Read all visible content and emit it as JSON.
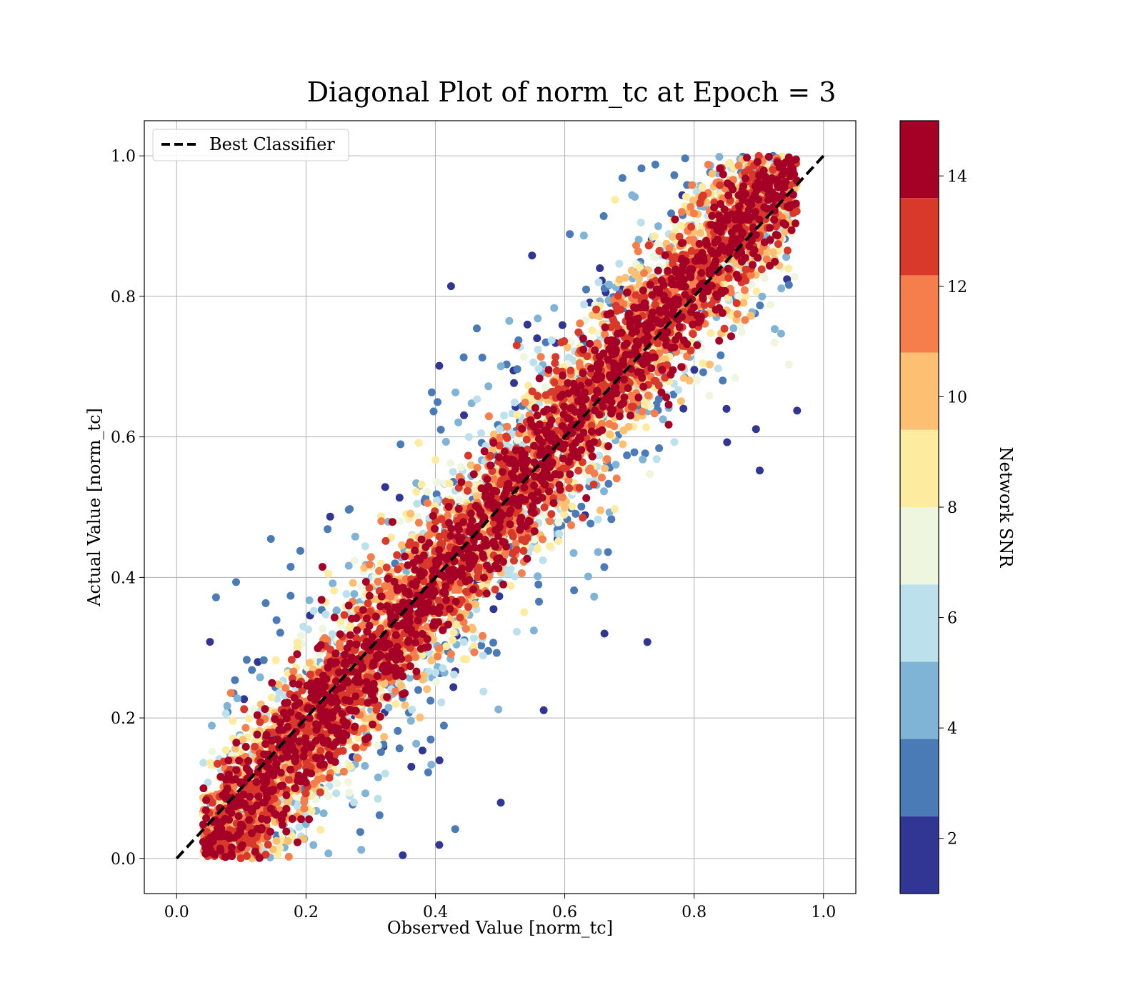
{
  "chart_data": {
    "type": "scatter",
    "title": "Diagonal Plot of norm_tc at Epoch = 3",
    "xlabel": "Observed Value [norm_tc]",
    "ylabel": "Actual Value [norm_tc]",
    "xlim": [
      -0.05,
      1.05
    ],
    "ylim": [
      -0.05,
      1.05
    ],
    "xticks": [
      "0.0",
      "0.2",
      "0.4",
      "0.6",
      "0.8",
      "1.0"
    ],
    "yticks": [
      "0.0",
      "0.2",
      "0.4",
      "0.6",
      "0.8",
      "1.0"
    ],
    "grid": true,
    "legend": {
      "position": "top-left",
      "entries": [
        "Best Classifier"
      ]
    },
    "reference_line": {
      "name": "Best Classifier",
      "x": [
        0,
        1
      ],
      "y": [
        0,
        1
      ],
      "style": "dashed",
      "color": "#000000"
    },
    "colorbar": {
      "label": "Network SNR",
      "range": [
        1,
        15
      ],
      "ticks": [
        "2",
        "4",
        "6",
        "8",
        "10",
        "12",
        "14"
      ],
      "bands": [
        {
          "min": 1.0,
          "max": 2.4,
          "color": "#313695"
        },
        {
          "min": 2.4,
          "max": 3.8,
          "color": "#4a7bb7"
        },
        {
          "min": 3.8,
          "max": 5.2,
          "color": "#80b4d6"
        },
        {
          "min": 5.2,
          "max": 6.6,
          "color": "#bde1ec"
        },
        {
          "min": 6.6,
          "max": 8.0,
          "color": "#eef6df"
        },
        {
          "min": 8.0,
          "max": 9.4,
          "color": "#fdeba0"
        },
        {
          "min": 9.4,
          "max": 10.8,
          "color": "#fdbf71"
        },
        {
          "min": 10.8,
          "max": 12.2,
          "color": "#f57e4c"
        },
        {
          "min": 12.2,
          "max": 13.6,
          "color": "#d8392b"
        },
        {
          "min": 13.6,
          "max": 15.0,
          "color": "#a50026"
        }
      ]
    },
    "scatter_description": {
      "points_x_range": [
        0.04,
        0.96
      ],
      "points_y_range": [
        0.0,
        1.0
      ],
      "pattern": "high SNR points concentrated along the diagonal; low SNR points spread far from the diagonal"
    }
  }
}
